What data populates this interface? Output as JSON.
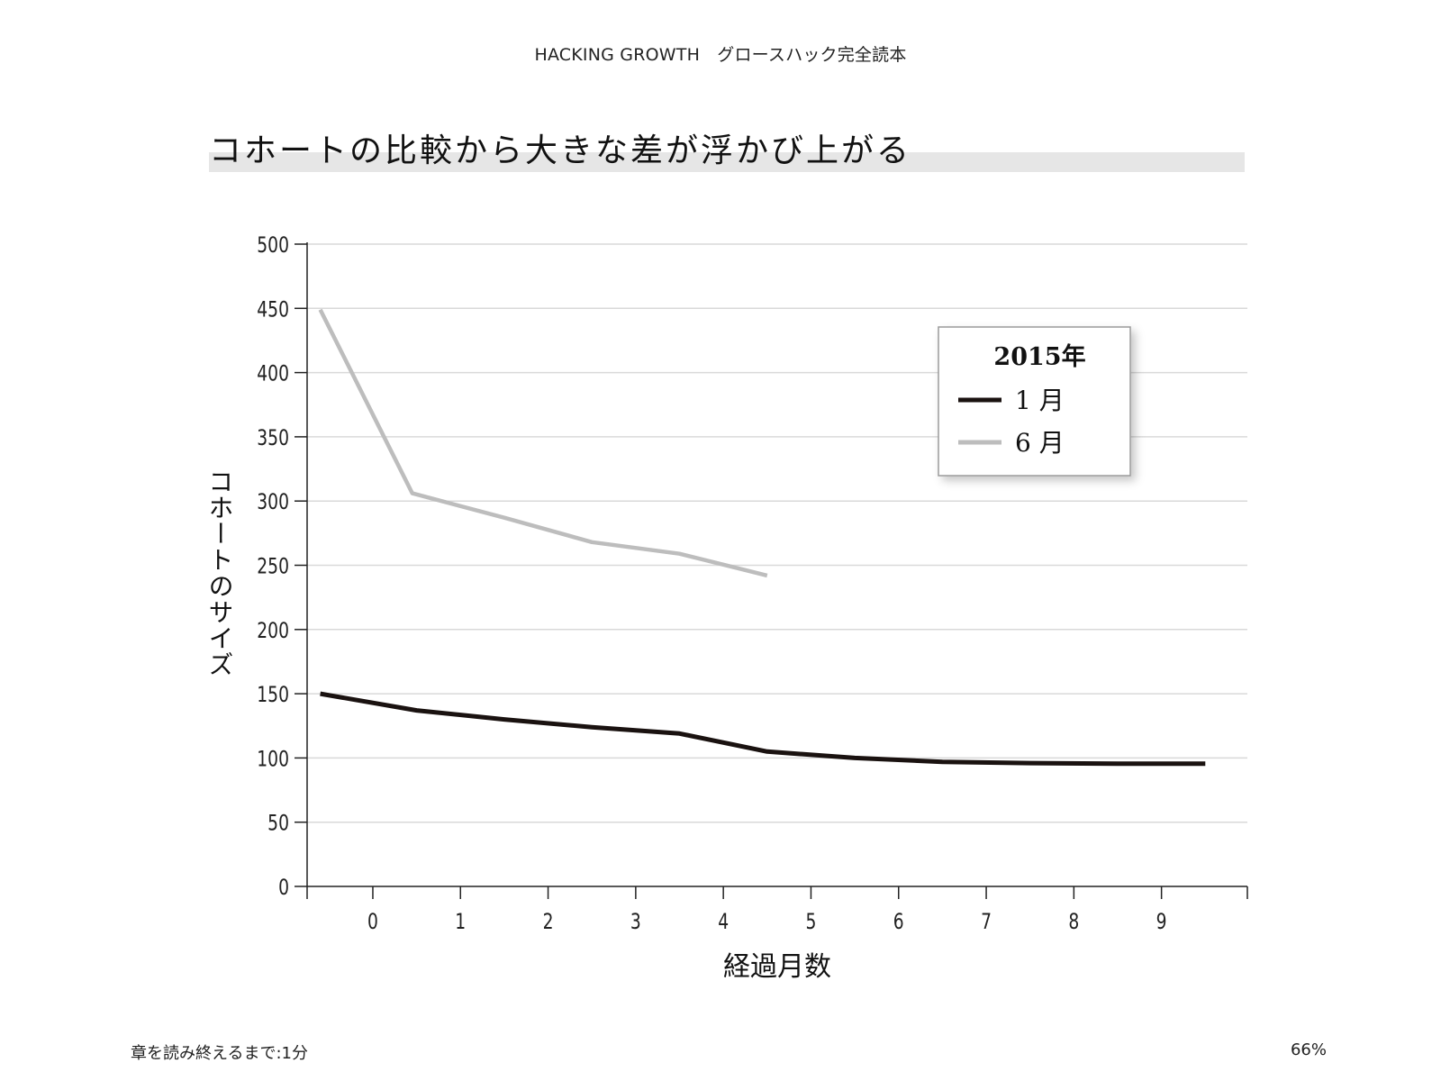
{
  "header": {
    "book_title": "HACKING GROWTH　グロースハック完全読本"
  },
  "figure": {
    "heading": "コホートの比較から大きな差が浮かび上がる"
  },
  "footer": {
    "reading_time": "章を読み終えるまで:1分",
    "progress": "66%"
  },
  "chart_data": {
    "type": "line",
    "title": "",
    "xlabel": "経過月数",
    "ylabel": "コホートのサイズ",
    "xlim": [
      -0.75,
      9.98
    ],
    "ylim": [
      0,
      500
    ],
    "xticks": [
      0,
      1,
      2,
      3,
      4,
      5,
      6,
      7,
      8,
      9
    ],
    "yticks": [
      0,
      50,
      100,
      150,
      200,
      250,
      300,
      350,
      400,
      450,
      500
    ],
    "grid": true,
    "legend": {
      "title": "2015年",
      "position": "top-right"
    },
    "series": [
      {
        "name": "1 月",
        "color": "#1a1210",
        "points": [
          [
            -0.6,
            150
          ],
          [
            0.5,
            137
          ],
          [
            1.5,
            130
          ],
          [
            2.5,
            124
          ],
          [
            3.5,
            119
          ],
          [
            4.5,
            105
          ],
          [
            5.5,
            100
          ],
          [
            6.5,
            97
          ],
          [
            7.5,
            96
          ],
          [
            8.5,
            95.5
          ],
          [
            9.5,
            95.5
          ]
        ]
      },
      {
        "name": "6 月",
        "color": "#bdbdbd",
        "points": [
          [
            -0.6,
            449
          ],
          [
            0.45,
            306
          ],
          [
            1.5,
            287
          ],
          [
            2.5,
            268
          ],
          [
            3.5,
            259
          ],
          [
            4.5,
            242
          ]
        ]
      }
    ]
  }
}
